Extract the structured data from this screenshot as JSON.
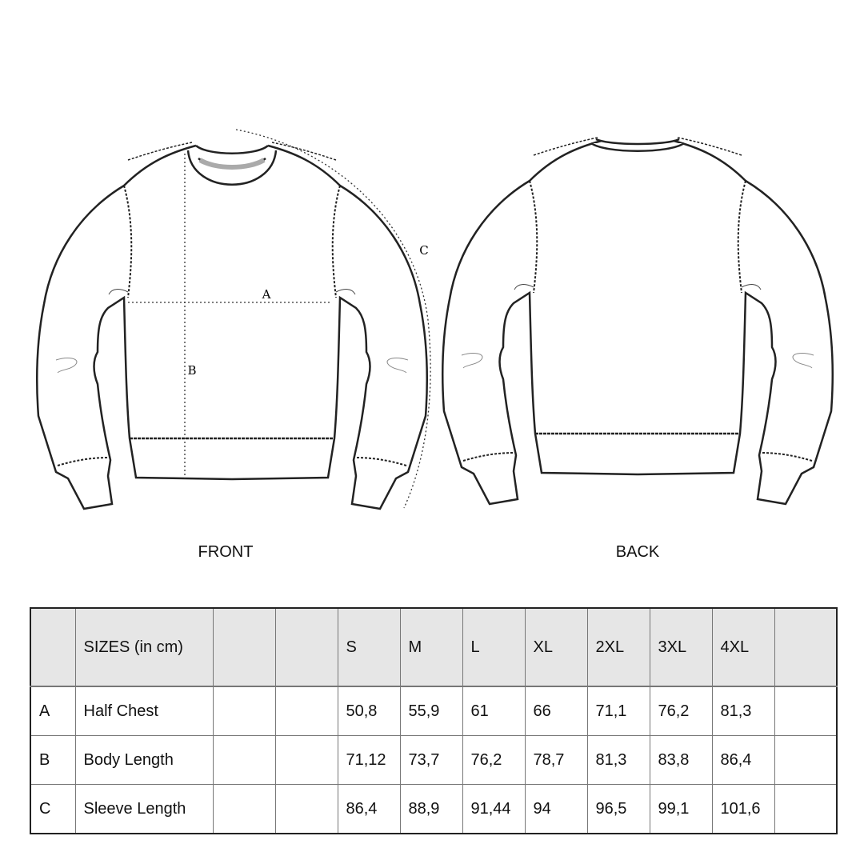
{
  "views": {
    "front": "FRONT",
    "back": "BACK"
  },
  "measure_labels": {
    "a": "A",
    "b": "B",
    "c": "C"
  },
  "table": {
    "header": [
      "",
      "SIZES (in cm)",
      "",
      "",
      "S",
      "M",
      "L",
      "XL",
      "2XL",
      "3XL",
      "4XL",
      ""
    ],
    "rows": [
      [
        "A",
        "Half Chest",
        "",
        "",
        "50,8",
        "55,9",
        "61",
        "66",
        "71,1",
        "76,2",
        "81,3",
        ""
      ],
      [
        "B",
        "Body Length",
        "",
        "",
        "71,12",
        "73,7",
        "76,2",
        "78,7",
        "81,3",
        "83,8",
        "86,4",
        ""
      ],
      [
        "C",
        "Sleeve Length",
        "",
        "",
        "86,4",
        "88,9",
        "91,44",
        "94",
        "96,5",
        "99,1",
        "101,6",
        ""
      ]
    ]
  },
  "colors": {
    "header_bg": "#e6e6e6",
    "line": "#222222"
  }
}
